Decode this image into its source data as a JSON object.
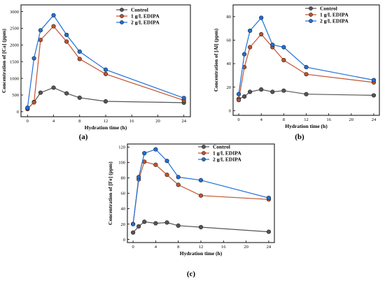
{
  "chart_data": [
    {
      "type": "line",
      "panel_label": "(a)",
      "xlabel": "Hydration time (h)",
      "ylabel": "Concentration of [Ca] (ppm)",
      "x": [
        0,
        1,
        2,
        4,
        6,
        8,
        12,
        24
      ],
      "xticks": [
        "0",
        "4",
        "8",
        "12",
        "16",
        "20",
        "24"
      ],
      "xtick_values": [
        0,
        4,
        8,
        12,
        16,
        20,
        24
      ],
      "yticks": [
        "0",
        "500",
        "1000",
        "1500",
        "2000",
        "2500",
        "3000"
      ],
      "ytick_values": [
        0,
        500,
        1000,
        1500,
        2000,
        2500,
        3000
      ],
      "xlim": [
        -1,
        25
      ],
      "ylim": [
        -150,
        3200
      ],
      "legend_position": "top-right",
      "series": [
        {
          "name": "Control",
          "color": "#555555",
          "values": [
            80,
            290,
            570,
            720,
            550,
            420,
            310,
            270
          ]
        },
        {
          "name": "1 g/L EDIPA",
          "color": "#c0522e",
          "values": [
            90,
            280,
            2150,
            2560,
            2100,
            1580,
            1130,
            340
          ]
        },
        {
          "name": "2 g/L EDIPA",
          "color": "#1e6fd9",
          "values": [
            120,
            1600,
            2440,
            2890,
            2300,
            1800,
            1260,
            410
          ]
        }
      ]
    },
    {
      "type": "line",
      "panel_label": "(b)",
      "xlabel": "Hydration time (h)",
      "ylabel": "Concentration of [Al] (ppm)",
      "x": [
        0,
        1,
        2,
        4,
        6,
        8,
        12,
        24
      ],
      "xticks": [
        "0",
        "4",
        "8",
        "12",
        "16",
        "20",
        "24"
      ],
      "xtick_values": [
        0,
        4,
        8,
        12,
        16,
        20,
        24
      ],
      "yticks": [
        "0",
        "20",
        "40",
        "60",
        "80"
      ],
      "ytick_values": [
        0,
        20,
        40,
        60,
        80
      ],
      "xlim": [
        -1,
        25
      ],
      "ylim": [
        -4,
        90
      ],
      "legend_position": "top-right",
      "series": [
        {
          "name": "Control",
          "color": "#555555",
          "values": [
            10,
            12,
            16,
            18,
            16,
            17,
            14,
            13
          ]
        },
        {
          "name": "1 g/L EDIPA",
          "color": "#c0522e",
          "values": [
            9,
            37,
            54,
            65,
            54,
            43,
            31,
            24
          ]
        },
        {
          "name": "2 g/L EDIPA",
          "color": "#1e6fd9",
          "values": [
            14,
            48,
            68,
            79,
            56,
            54,
            37,
            26
          ]
        }
      ]
    },
    {
      "type": "line",
      "panel_label": "(c)",
      "xlabel": "Hydration time (h)",
      "ylabel": "Concentration of [Fe] (ppm)",
      "x": [
        0,
        1,
        2,
        4,
        6,
        8,
        12,
        24
      ],
      "xticks": [
        "0",
        "4",
        "8",
        "12",
        "16",
        "20",
        "24"
      ],
      "xtick_values": [
        0,
        4,
        8,
        12,
        16,
        20,
        24
      ],
      "yticks": [
        "0",
        "20",
        "40",
        "60",
        "80",
        "100",
        "120"
      ],
      "ytick_values": [
        0,
        20,
        40,
        60,
        80,
        100,
        120
      ],
      "xlim": [
        -1,
        25
      ],
      "ylim": [
        -4,
        124
      ],
      "legend_position": "top-right",
      "series": [
        {
          "name": "Control",
          "color": "#555555",
          "values": [
            9,
            17,
            23,
            21,
            22,
            18,
            16,
            10
          ]
        },
        {
          "name": "1 g/L EDIPA",
          "color": "#c0522e",
          "values": [
            20,
            78,
            101,
            97,
            84,
            71,
            57,
            52
          ]
        },
        {
          "name": "2 g/L EDIPA",
          "color": "#1e6fd9",
          "values": [
            20,
            81,
            112,
            117,
            102,
            81,
            77,
            54
          ]
        }
      ]
    }
  ]
}
